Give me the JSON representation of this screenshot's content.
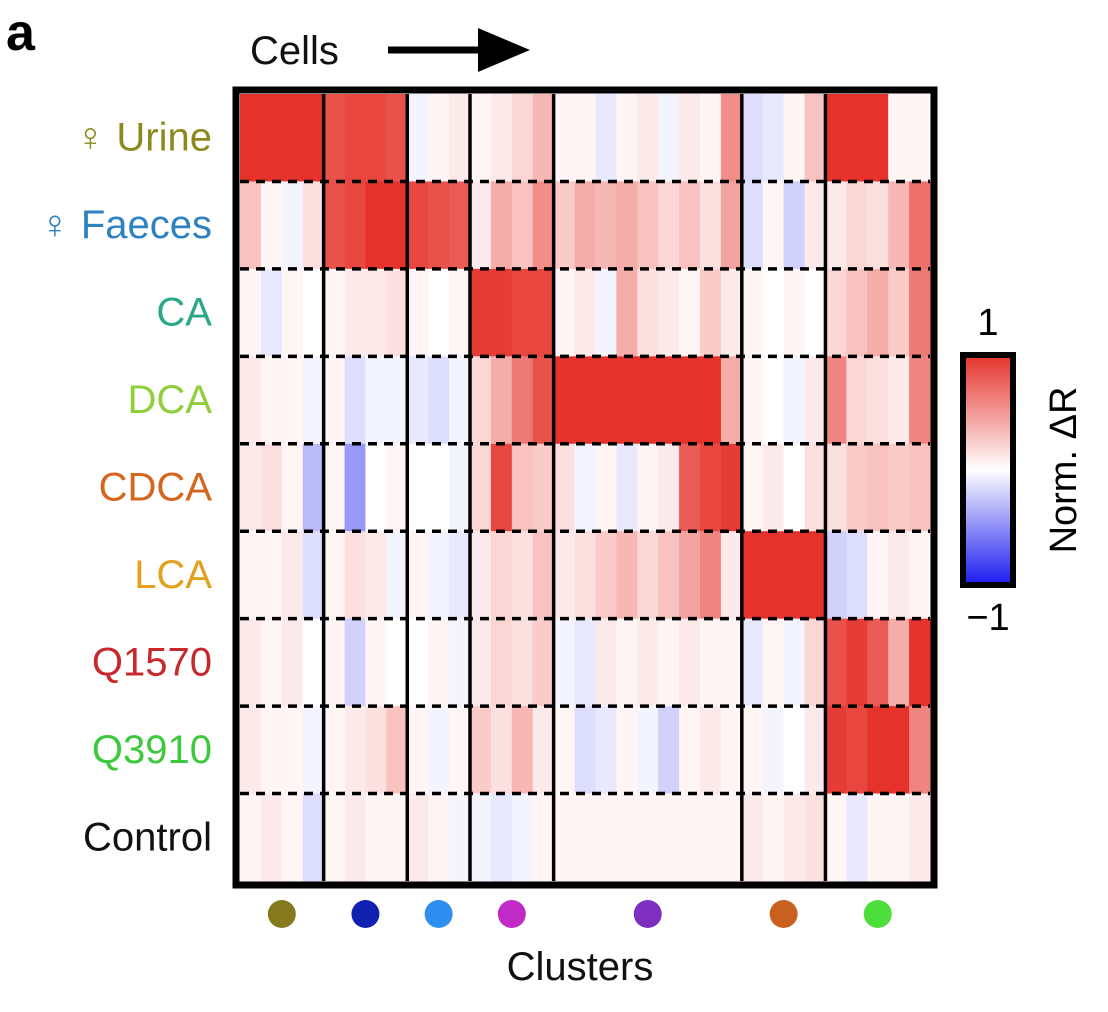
{
  "chart_data": {
    "type": "heatmap",
    "panel_label": "a",
    "top_label": "Cells",
    "xlabel": "Clusters",
    "colorbar": {
      "label": "Norm. ΔR",
      "max_label": "1",
      "min_label": "−1",
      "range": [
        -1,
        1
      ],
      "colors": {
        "low": "#1b1bf0",
        "mid": "#ffffff",
        "high": "#e5322b"
      }
    },
    "rows": [
      {
        "label": "♀ Urine",
        "color": "#8c8a1c"
      },
      {
        "label": "♀ Faeces",
        "color": "#2f82c0"
      },
      {
        "label": "CA",
        "color": "#2aa988"
      },
      {
        "label": "DCA",
        "color": "#8fcf3c"
      },
      {
        "label": "CDCA",
        "color": "#d4661f"
      },
      {
        "label": "LCA",
        "color": "#e0a21f"
      },
      {
        "label": "Q1570",
        "color": "#c8282c"
      },
      {
        "label": "Q3910",
        "color": "#3cc93c"
      },
      {
        "label": "Control",
        "color": "#111111"
      }
    ],
    "clusters": [
      {
        "columns": 4,
        "color": "#857a1d"
      },
      {
        "columns": 4,
        "color": "#1020b0"
      },
      {
        "columns": 3,
        "color": "#2f8ff0"
      },
      {
        "columns": 4,
        "color": "#c02ac6"
      },
      {
        "columns": 9,
        "color": "#7d2fc0"
      },
      {
        "columns": 4,
        "color": "#c8601f"
      },
      {
        "columns": 5,
        "color": "#4ddd3c"
      }
    ],
    "values": [
      [
        1.0,
        1.0,
        1.0,
        1.0,
        0.85,
        0.9,
        0.9,
        0.85,
        -0.05,
        0.05,
        0.1,
        0.05,
        0.1,
        0.2,
        0.35,
        0.05,
        0.05,
        -0.1,
        0.05,
        0.1,
        -0.05,
        0.1,
        0.05,
        0.55,
        -0.15,
        -0.1,
        0.05,
        0.3,
        1.0,
        1.0,
        1.0,
        0.05,
        0.05
      ],
      [
        0.3,
        0.05,
        -0.05,
        0.15,
        0.85,
        0.9,
        1.0,
        1.0,
        0.9,
        0.85,
        0.8,
        0.1,
        0.4,
        0.3,
        0.55,
        0.25,
        0.4,
        0.35,
        0.4,
        0.3,
        0.2,
        0.3,
        0.15,
        0.45,
        -0.15,
        0.05,
        -0.2,
        0.1,
        0.1,
        0.2,
        0.15,
        0.35,
        0.7
      ],
      [
        0.05,
        -0.1,
        0.05,
        0.0,
        0.05,
        0.1,
        0.1,
        0.15,
        0.05,
        0.0,
        0.05,
        0.95,
        0.95,
        0.9,
        0.9,
        0.05,
        0.1,
        -0.05,
        0.4,
        0.15,
        0.1,
        0.05,
        0.25,
        0.1,
        0.05,
        0.0,
        0.05,
        0.0,
        0.2,
        0.3,
        0.4,
        0.25,
        0.65
      ],
      [
        0.1,
        0.05,
        0.05,
        -0.05,
        0.05,
        -0.15,
        -0.05,
        -0.05,
        -0.1,
        -0.15,
        -0.05,
        0.2,
        0.4,
        0.65,
        0.85,
        1.0,
        1.0,
        1.0,
        1.0,
        1.0,
        1.0,
        1.0,
        1.0,
        0.4,
        0.05,
        0.0,
        -0.05,
        0.1,
        0.6,
        0.2,
        0.15,
        0.1,
        0.6
      ],
      [
        0.1,
        0.15,
        0.05,
        -0.3,
        0.05,
        -0.45,
        0.0,
        0.05,
        0.0,
        0.0,
        -0.05,
        0.2,
        0.9,
        0.3,
        0.25,
        0.15,
        -0.05,
        0.05,
        -0.1,
        0.05,
        0.1,
        0.8,
        0.9,
        0.95,
        0.05,
        0.1,
        0.0,
        0.15,
        0.15,
        0.25,
        0.3,
        0.25,
        0.3
      ],
      [
        0.05,
        0.05,
        0.1,
        -0.15,
        0.05,
        0.15,
        0.1,
        -0.05,
        0.05,
        -0.05,
        -0.1,
        0.1,
        0.2,
        0.15,
        0.3,
        0.1,
        0.15,
        0.25,
        0.35,
        0.2,
        0.3,
        0.45,
        0.6,
        0.1,
        1.0,
        1.0,
        1.0,
        1.0,
        -0.2,
        -0.15,
        0.05,
        0.1,
        0.05
      ],
      [
        0.1,
        0.05,
        0.1,
        0.0,
        0.05,
        -0.2,
        0.05,
        0.0,
        0.0,
        0.05,
        -0.05,
        0.1,
        0.2,
        0.15,
        0.25,
        -0.05,
        -0.1,
        0.1,
        0.05,
        0.1,
        0.05,
        0.1,
        0.05,
        0.05,
        -0.1,
        0.05,
        -0.05,
        0.2,
        0.85,
        0.95,
        0.8,
        0.4,
        1.0
      ],
      [
        0.1,
        0.05,
        0.05,
        -0.05,
        0.05,
        0.1,
        0.15,
        0.3,
        0.05,
        -0.05,
        0.05,
        0.25,
        0.15,
        0.35,
        0.1,
        0.05,
        -0.15,
        -0.1,
        0.05,
        -0.05,
        -0.2,
        0.05,
        0.1,
        0.05,
        0.05,
        -0.05,
        0.0,
        0.1,
        0.95,
        0.9,
        1.0,
        1.0,
        0.6
      ],
      [
        0.05,
        0.1,
        0.05,
        -0.15,
        0.05,
        0.1,
        0.05,
        0.05,
        0.1,
        0.05,
        -0.05,
        -0.05,
        -0.1,
        -0.05,
        0.05,
        0.05,
        0.05,
        0.05,
        0.05,
        0.05,
        0.05,
        0.05,
        0.05,
        0.05,
        0.1,
        0.05,
        0.1,
        0.15,
        0.05,
        -0.1,
        0.05,
        0.05,
        0.1
      ]
    ]
  }
}
